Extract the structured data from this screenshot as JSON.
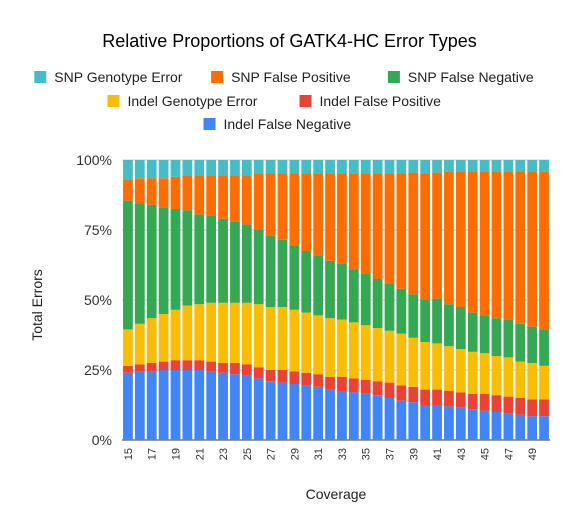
{
  "chart_data": {
    "type": "bar",
    "stacked": "percent",
    "title": "Relative Proportions of GATK4-HC Error Types",
    "xlabel": "Coverage",
    "ylabel": "Total Errors",
    "ylim": [
      0,
      100
    ],
    "yticks": [
      "0%",
      "25%",
      "50%",
      "75%",
      "100%"
    ],
    "grid": true,
    "legend_position": "top",
    "categories": [
      15,
      16,
      17,
      18,
      19,
      20,
      21,
      22,
      23,
      24,
      25,
      26,
      27,
      28,
      29,
      30,
      31,
      32,
      33,
      34,
      35,
      36,
      37,
      38,
      39,
      40,
      41,
      42,
      43,
      44,
      45,
      46,
      47,
      48,
      49,
      50
    ],
    "xtick_labels": [
      "15",
      "17",
      "19",
      "21",
      "23",
      "25",
      "27",
      "29",
      "31",
      "33",
      "35",
      "37",
      "39",
      "41",
      "43",
      "45",
      "47",
      "49"
    ],
    "series": [
      {
        "name": "Indel False Negative",
        "color": "#4285f4",
        "values": [
          24,
          24.5,
          24.5,
          25,
          25,
          25,
          25,
          24.5,
          24,
          23.5,
          23,
          22,
          21,
          20.5,
          20,
          19.5,
          19,
          18,
          17.5,
          17,
          16.5,
          16,
          15,
          14,
          13.5,
          12.5,
          12.5,
          12,
          11.5,
          11,
          10.5,
          10,
          9.5,
          9,
          8.5,
          8.5
        ]
      },
      {
        "name": "Indel False Positive",
        "color": "#ea4335",
        "values": [
          2.5,
          2.5,
          3,
          3,
          3.5,
          3.5,
          3.5,
          3.5,
          3.5,
          4,
          4,
          4,
          4,
          4.5,
          4.5,
          4.5,
          4.5,
          4.5,
          5,
          5,
          5,
          5,
          5.5,
          5.5,
          5.5,
          5.5,
          5.5,
          5.5,
          5.5,
          5.5,
          6,
          6,
          6,
          6,
          6,
          6
        ]
      },
      {
        "name": "Indel Genotype Error",
        "color": "#fbbc04",
        "values": [
          13,
          14.5,
          16,
          17,
          18,
          19.5,
          20,
          21,
          21.5,
          21.5,
          22,
          22.5,
          22.5,
          22.5,
          22,
          21.5,
          21,
          21,
          20.5,
          20,
          19.5,
          19,
          18.5,
          18.5,
          17.5,
          17,
          16.5,
          16,
          15.5,
          15,
          14.5,
          14,
          14,
          13,
          13,
          12
        ]
      },
      {
        "name": "SNP False Negative",
        "color": "#34a853",
        "values": [
          46,
          43,
          40.5,
          38,
          36,
          34,
          32,
          31,
          30,
          29,
          28,
          26.5,
          25.5,
          24,
          23,
          22,
          21.5,
          20.5,
          20,
          19,
          18.5,
          17.5,
          17,
          16,
          15.5,
          15,
          16,
          15,
          15,
          14,
          13.5,
          13.5,
          13.5,
          13.5,
          13,
          13
        ]
      },
      {
        "name": "SNP False Positive",
        "color": "#ff6d01",
        "values": [
          7.5,
          9,
          9.5,
          10.5,
          11.5,
          12.5,
          14,
          14.5,
          15.5,
          16.5,
          17.5,
          20,
          22,
          23.5,
          25.5,
          27.5,
          29,
          31,
          32,
          34,
          35.5,
          37.5,
          39,
          41,
          43.5,
          45,
          45,
          47.5,
          48.5,
          50.5,
          51.5,
          52.5,
          53,
          54.5,
          55.5,
          56.5
        ]
      },
      {
        "name": "SNP Genotype Error",
        "color": "#46bdc6",
        "values": [
          7,
          6.5,
          6.5,
          6.5,
          6,
          5.5,
          5.5,
          5.5,
          5.5,
          5.5,
          5.5,
          5,
          5,
          5,
          5,
          5,
          5,
          5,
          5,
          5,
          5,
          5,
          5,
          5,
          4.5,
          5,
          4.5,
          4,
          4,
          4,
          4,
          4,
          4,
          4,
          4,
          4
        ]
      }
    ],
    "legend_order": [
      "SNP Genotype Error",
      "SNP False Positive",
      "SNP False Negative",
      "Indel Genotype Error",
      "Indel False Positive",
      "Indel False Negative"
    ]
  }
}
